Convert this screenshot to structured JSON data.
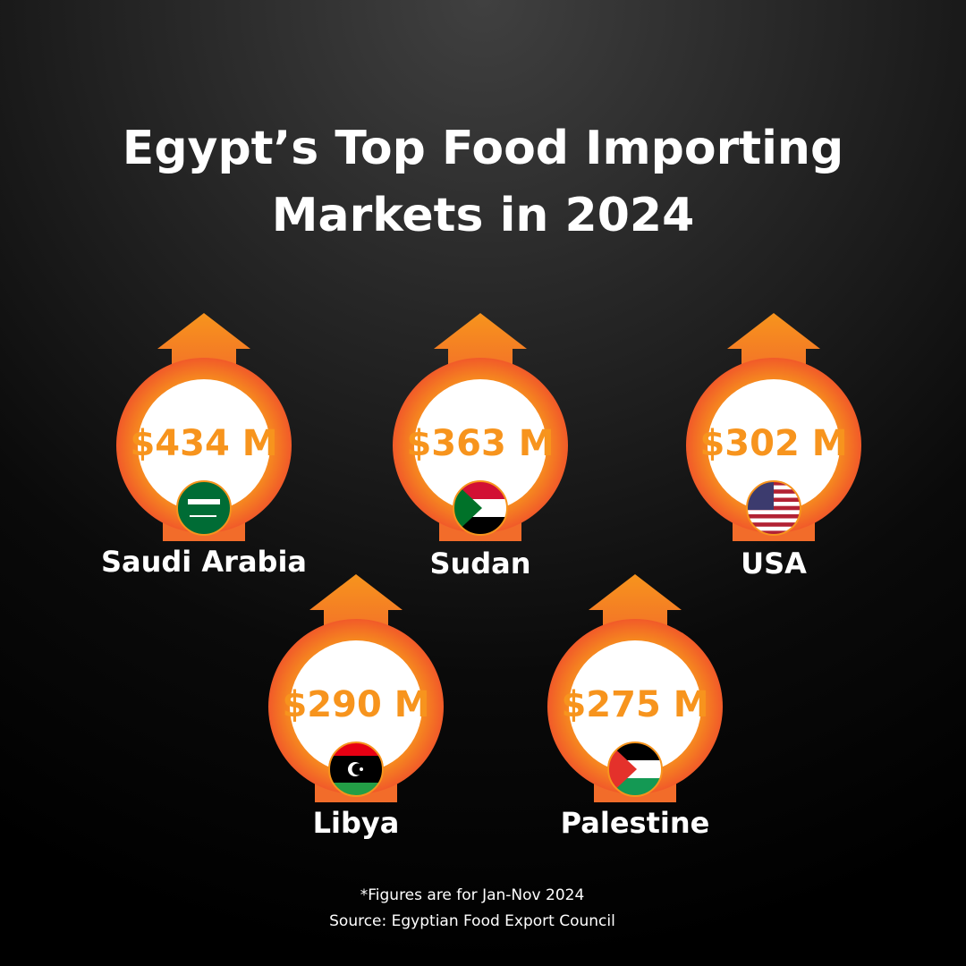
{
  "header": {
    "title_line1": "Egypt’s Top Food Importing",
    "title_line2": "Markets in 2024"
  },
  "markets": [
    {
      "name": "Saudi Arabia",
      "value": "$434 M"
    },
    {
      "name": "Sudan",
      "value": "$363 M"
    },
    {
      "name": "USA",
      "value": "$302 M"
    },
    {
      "name": "Libya",
      "value": "$290 M"
    },
    {
      "name": "Palestine",
      "value": "$275 M"
    }
  ],
  "footer": {
    "note": "*Figures are for Jan-Nov 2024",
    "source": "Source: Egyptian Food Export Council"
  }
}
